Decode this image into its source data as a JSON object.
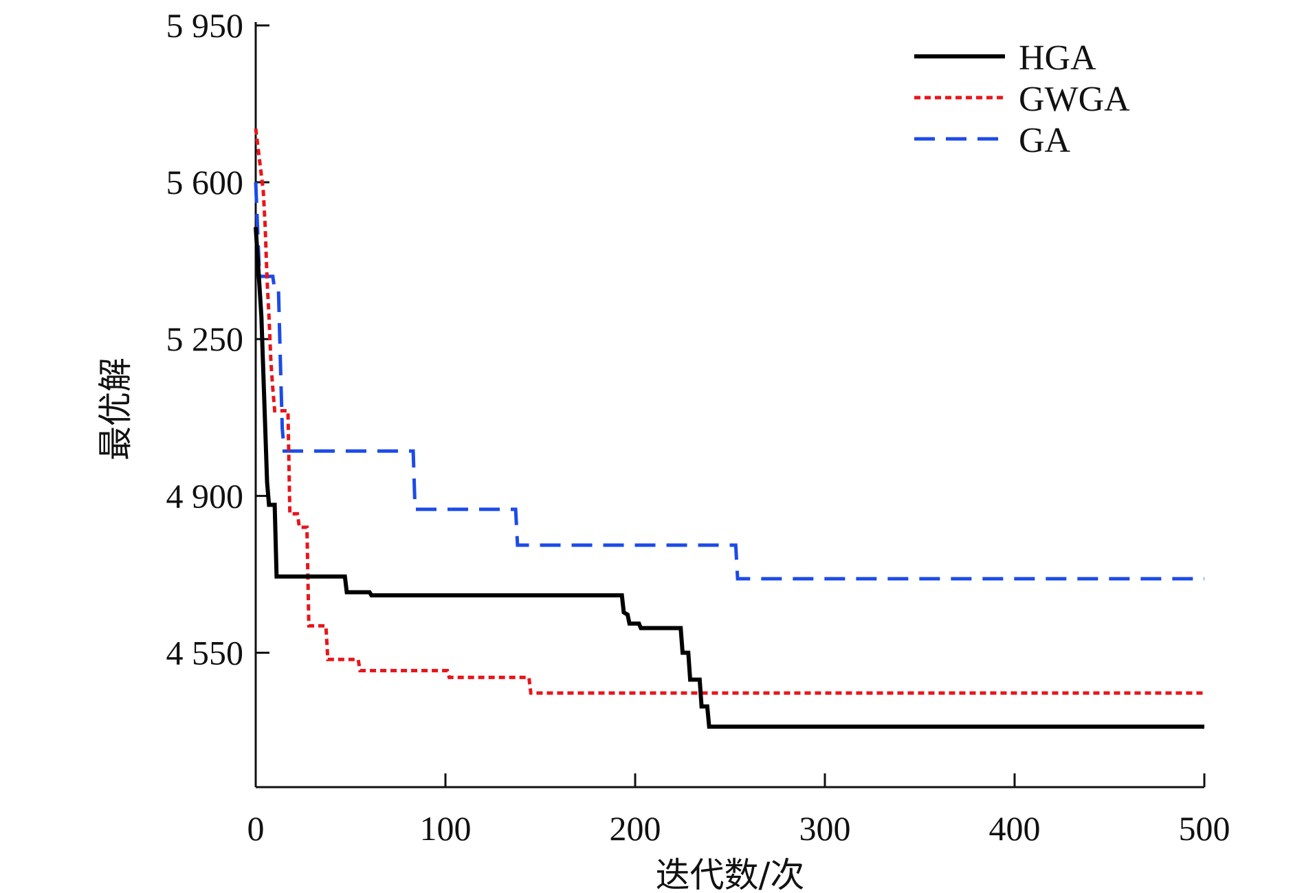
{
  "chart_data": {
    "type": "line",
    "title": "",
    "xlabel": "迭代数/次",
    "ylabel": "最优解",
    "xlim": [
      0,
      500
    ],
    "ylim": [
      4250,
      5950
    ],
    "x_ticks": [
      0,
      100,
      200,
      300,
      400,
      500
    ],
    "x_tick_labels": [
      "0",
      "100",
      "200",
      "300",
      "400",
      "500"
    ],
    "y_ticks": [
      4550,
      4900,
      5250,
      5600,
      5950
    ],
    "y_tick_labels": [
      "4 550",
      "4 900",
      "5 250",
      "5 600",
      "5 950"
    ],
    "grid": false,
    "legend_position": "top-right",
    "series": [
      {
        "name": "HGA",
        "color": "#000000",
        "style": "solid",
        "points": [
          [
            0,
            5500
          ],
          [
            3,
            5300
          ],
          [
            6,
            4930
          ],
          [
            7,
            4880
          ],
          [
            10,
            4880
          ],
          [
            11,
            4720
          ],
          [
            47,
            4720
          ],
          [
            48,
            4685
          ],
          [
            60,
            4685
          ],
          [
            61,
            4678
          ],
          [
            193,
            4678
          ],
          [
            194,
            4640
          ],
          [
            196,
            4635
          ],
          [
            197,
            4615
          ],
          [
            202,
            4615
          ],
          [
            203,
            4605
          ],
          [
            224,
            4605
          ],
          [
            225,
            4550
          ],
          [
            228,
            4550
          ],
          [
            229,
            4490
          ],
          [
            234,
            4490
          ],
          [
            235,
            4430
          ],
          [
            238,
            4430
          ],
          [
            239,
            4385
          ],
          [
            500,
            4385
          ]
        ]
      },
      {
        "name": "GWGA",
        "color": "#e8151b",
        "style": "dotted",
        "points": [
          [
            0,
            5720
          ],
          [
            2,
            5650
          ],
          [
            4,
            5580
          ],
          [
            5,
            5500
          ],
          [
            6,
            5380
          ],
          [
            7,
            5300
          ],
          [
            8,
            5200
          ],
          [
            9,
            5140
          ],
          [
            10,
            5090
          ],
          [
            17,
            5090
          ],
          [
            18,
            4860
          ],
          [
            22,
            4860
          ],
          [
            23,
            4830
          ],
          [
            27,
            4830
          ],
          [
            28,
            4610
          ],
          [
            37,
            4610
          ],
          [
            38,
            4535
          ],
          [
            54,
            4535
          ],
          [
            55,
            4510
          ],
          [
            101,
            4510
          ],
          [
            102,
            4495
          ],
          [
            144,
            4495
          ],
          [
            145,
            4460
          ],
          [
            500,
            4460
          ]
        ]
      },
      {
        "name": "GA",
        "color": "#1c4be8",
        "style": "dashed",
        "points": [
          [
            0,
            5600
          ],
          [
            2,
            5390
          ],
          [
            9,
            5390
          ],
          [
            10,
            5360
          ],
          [
            12,
            5360
          ],
          [
            13,
            5200
          ],
          [
            14,
            5050
          ],
          [
            15,
            5000
          ],
          [
            83,
            5000
          ],
          [
            84,
            4870
          ],
          [
            137,
            4870
          ],
          [
            138,
            4790
          ],
          [
            253,
            4790
          ],
          [
            254,
            4715
          ],
          [
            500,
            4715
          ]
        ]
      }
    ]
  }
}
